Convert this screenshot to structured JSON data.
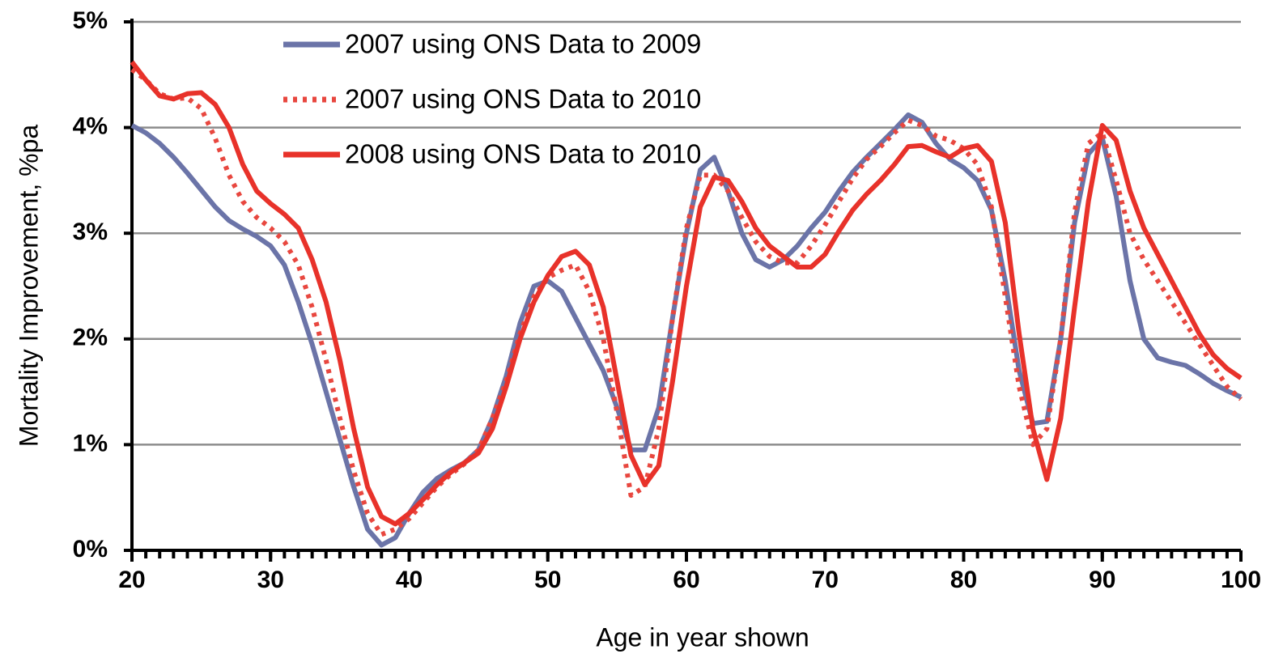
{
  "chart_data": {
    "type": "line",
    "x_label": "Age in year shown",
    "y_label": "Mortality Improvement, %pa",
    "x": [
      20,
      21,
      22,
      23,
      24,
      25,
      26,
      27,
      28,
      29,
      30,
      31,
      32,
      33,
      34,
      35,
      36,
      37,
      38,
      39,
      40,
      41,
      42,
      43,
      44,
      45,
      46,
      47,
      48,
      49,
      50,
      51,
      52,
      53,
      54,
      55,
      56,
      57,
      58,
      59,
      60,
      61,
      62,
      63,
      64,
      65,
      66,
      67,
      68,
      69,
      70,
      71,
      72,
      73,
      74,
      75,
      76,
      77,
      78,
      79,
      80,
      81,
      82,
      83,
      84,
      85,
      86,
      87,
      88,
      89,
      90,
      91,
      92,
      93,
      94,
      95,
      96,
      97,
      98,
      99,
      100
    ],
    "series": [
      {
        "name": "2007 using ONS Data to 2009",
        "color": "#6b74a8",
        "style": "solid",
        "values": [
          4.02,
          3.95,
          3.85,
          3.72,
          3.57,
          3.41,
          3.25,
          3.12,
          3.04,
          2.97,
          2.88,
          2.7,
          2.35,
          1.95,
          1.5,
          1.05,
          0.6,
          0.2,
          0.05,
          0.12,
          0.35,
          0.55,
          0.68,
          0.76,
          0.83,
          0.95,
          1.25,
          1.65,
          2.15,
          2.5,
          2.55,
          2.45,
          2.2,
          1.95,
          1.7,
          1.35,
          0.95,
          0.95,
          1.35,
          2.2,
          3.0,
          3.6,
          3.72,
          3.4,
          3.0,
          2.75,
          2.68,
          2.75,
          2.88,
          3.05,
          3.2,
          3.4,
          3.58,
          3.72,
          3.85,
          3.98,
          4.12,
          4.05,
          3.85,
          3.7,
          3.62,
          3.5,
          3.22,
          2.55,
          1.7,
          1.2,
          1.22,
          2.0,
          3.1,
          3.75,
          3.9,
          3.35,
          2.55,
          2.0,
          1.82,
          1.78,
          1.75,
          1.67,
          1.58,
          1.51,
          1.45
        ]
      },
      {
        "name": "2007 using ONS Data to 2010",
        "color": "#e8473f",
        "style": "dotted",
        "values": [
          4.55,
          4.45,
          4.32,
          4.27,
          4.28,
          4.18,
          3.9,
          3.55,
          3.3,
          3.15,
          3.05,
          2.92,
          2.7,
          2.3,
          1.8,
          1.25,
          0.75,
          0.35,
          0.15,
          0.2,
          0.3,
          0.45,
          0.6,
          0.72,
          0.82,
          0.95,
          1.25,
          1.6,
          2.05,
          2.4,
          2.58,
          2.65,
          2.7,
          2.45,
          2.0,
          1.3,
          0.52,
          0.6,
          1.15,
          2.2,
          3.05,
          3.55,
          3.55,
          3.4,
          3.15,
          2.92,
          2.78,
          2.72,
          2.72,
          2.88,
          3.08,
          3.3,
          3.52,
          3.7,
          3.82,
          3.95,
          4.07,
          4.02,
          3.92,
          3.88,
          3.8,
          3.65,
          3.25,
          2.4,
          1.55,
          1.0,
          1.15,
          2.0,
          3.2,
          3.85,
          3.95,
          3.5,
          3.0,
          2.75,
          2.55,
          2.35,
          2.15,
          1.95,
          1.75,
          1.55,
          1.43
        ]
      },
      {
        "name": "2008 using ONS Data to 2010",
        "color": "#e8322a",
        "style": "solid",
        "values": [
          4.62,
          4.45,
          4.3,
          4.27,
          4.32,
          4.33,
          4.22,
          4.0,
          3.65,
          3.4,
          3.28,
          3.18,
          3.05,
          2.75,
          2.35,
          1.8,
          1.15,
          0.6,
          0.32,
          0.25,
          0.35,
          0.48,
          0.62,
          0.74,
          0.83,
          0.92,
          1.15,
          1.55,
          2.0,
          2.35,
          2.6,
          2.78,
          2.83,
          2.7,
          2.3,
          1.6,
          0.9,
          0.62,
          0.8,
          1.6,
          2.5,
          3.25,
          3.53,
          3.5,
          3.3,
          3.05,
          2.88,
          2.78,
          2.68,
          2.68,
          2.8,
          3.02,
          3.22,
          3.37,
          3.5,
          3.65,
          3.82,
          3.83,
          3.77,
          3.72,
          3.8,
          3.83,
          3.68,
          3.1,
          2.05,
          1.15,
          0.67,
          1.25,
          2.3,
          3.3,
          4.02,
          3.88,
          3.4,
          3.05,
          2.8,
          2.55,
          2.3,
          2.05,
          1.85,
          1.72,
          1.63
        ]
      }
    ],
    "xlim": [
      20,
      100
    ],
    "xticks": [
      20,
      30,
      40,
      50,
      60,
      70,
      80,
      90,
      100
    ],
    "ylim": [
      0,
      5
    ],
    "yticks": [
      {
        "value": 0,
        "label": "0%"
      },
      {
        "value": 1,
        "label": "1%"
      },
      {
        "value": 2,
        "label": "2%"
      },
      {
        "value": 3,
        "label": "3%"
      },
      {
        "value": 4,
        "label": "4%"
      },
      {
        "value": 5,
        "label": "5%"
      }
    ],
    "grid": true,
    "legend": "upper center"
  }
}
